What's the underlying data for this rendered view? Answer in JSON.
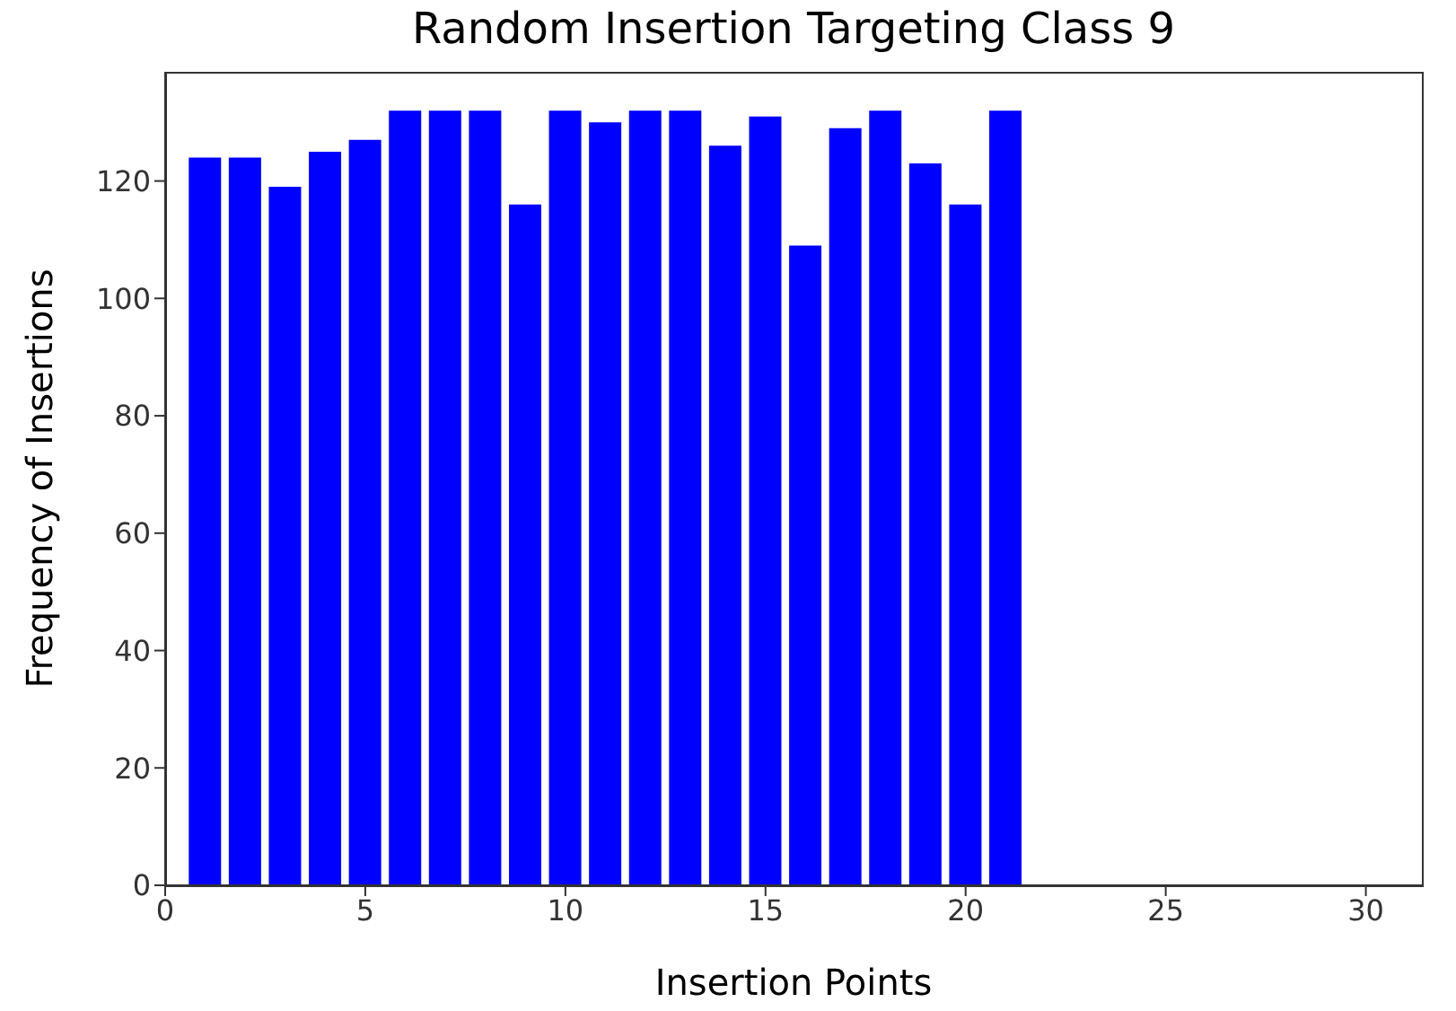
{
  "chart_data": {
    "type": "bar",
    "title": "Random Insertion Targeting Class 9",
    "xlabel": "Insertion Points",
    "ylabel": "Frequency of Insertions",
    "x": [
      1,
      2,
      3,
      4,
      5,
      6,
      7,
      8,
      9,
      10,
      11,
      12,
      13,
      14,
      15,
      16,
      17,
      18,
      19,
      20,
      21
    ],
    "values": [
      124,
      124,
      119,
      125,
      127,
      132,
      132,
      132,
      116,
      132,
      130,
      132,
      132,
      126,
      131,
      109,
      129,
      132,
      123,
      116,
      132
    ],
    "color": "#0000ff",
    "xlim": [
      0,
      31.4
    ],
    "xticks": [
      0,
      5,
      10,
      15,
      20,
      25,
      30
    ],
    "ylim": [
      0,
      138.6
    ],
    "yticks": [
      0,
      20,
      40,
      60,
      80,
      100,
      120
    ]
  }
}
